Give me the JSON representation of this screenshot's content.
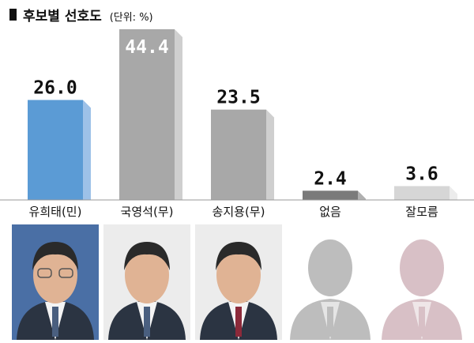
{
  "chart_data": {
    "type": "bar",
    "title": "후보별 선호도",
    "unit": "(단위: %)",
    "categories": [
      "유희태(민)",
      "국영석(무)",
      "송지용(무)",
      "없음",
      "잘모름"
    ],
    "values": [
      26.0,
      44.4,
      23.5,
      2.4,
      3.6
    ],
    "value_labels": [
      "26.0",
      "44.4",
      "23.5",
      "2.4",
      "3.6"
    ],
    "ylim": [
      0,
      44.4
    ]
  },
  "colors": {
    "bars": [
      "#5b9bd5",
      "#a8a8a8",
      "#a8a8a8",
      "#7a7a7a",
      "#d6d6d6"
    ],
    "bar_shade": [
      "#9dc1e8",
      "#cfcfcf",
      "#cfcfcf",
      "#b0b0b0",
      "#ececec"
    ],
    "value_text": [
      "#111111",
      "#ffffff",
      "#111111",
      "#111111",
      "#111111"
    ],
    "portrait_bg": [
      "#4a6fa5",
      "#ececec",
      "#ececec",
      "#ffffff",
      "#ffffff"
    ],
    "silhouette": [
      "",
      "",
      "",
      "#bdbdbd",
      "#d8c0c6"
    ]
  },
  "portraits": [
    "photo",
    "photo",
    "photo",
    "silhouette",
    "silhouette"
  ]
}
